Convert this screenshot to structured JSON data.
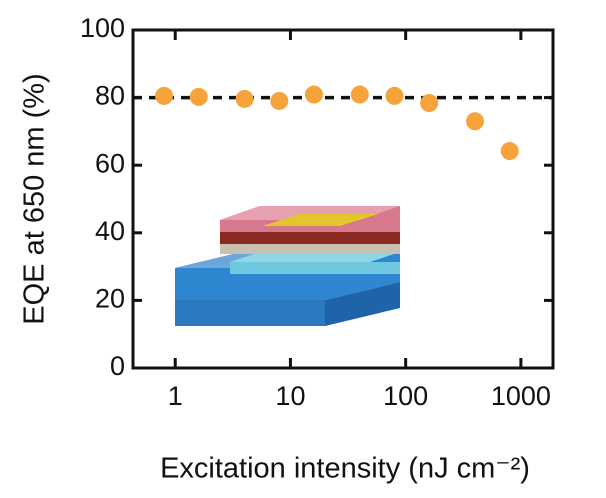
{
  "chart_data": {
    "type": "scatter",
    "xlabel": "Excitation intensity (nJ cm⁻²)",
    "ylabel": "EQE at 650 nm (%)",
    "x": [
      0.8,
      1.6,
      4,
      8,
      16,
      40,
      80,
      160,
      400,
      800
    ],
    "series": [
      {
        "color": "#f5a33a",
        "values": [
          80.5,
          80.2,
          79.6,
          79,
          80.9,
          80.9,
          80.5,
          78.4,
          73,
          64.2
        ]
      }
    ],
    "xscale": "log",
    "xlim": [
      0.43,
      1900
    ],
    "xticks": [
      1,
      10,
      100,
      1000
    ],
    "ylim": [
      0,
      100
    ],
    "yticks": [
      0,
      20,
      40,
      60,
      80,
      100
    ],
    "reference_line": {
      "y": 80,
      "color": "#111",
      "style": "dashed"
    }
  }
}
